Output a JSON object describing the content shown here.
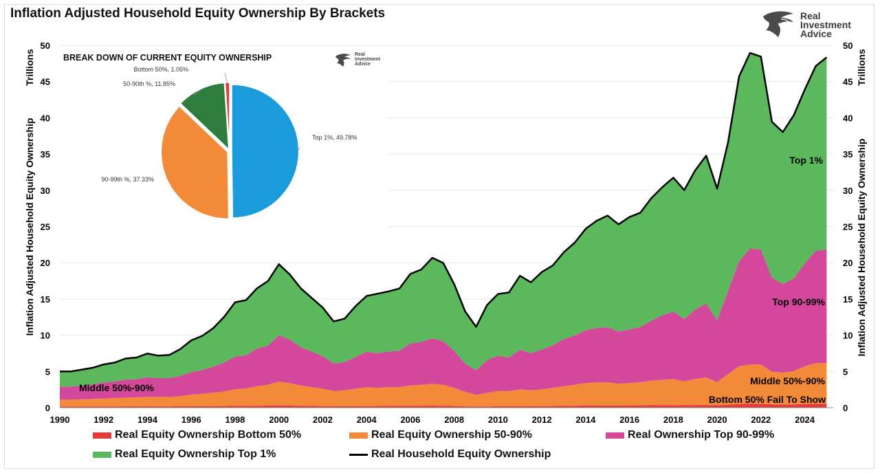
{
  "title": "Inflation Adjusted Household Equity Ownership By Brackets",
  "logo": {
    "line1": "Real",
    "line2": "Investment",
    "line3": "Advice"
  },
  "colors": {
    "bottom50": "#e53a3a",
    "p50_90": "#f28a3a",
    "p90_99": "#d3489b",
    "top1": "#5cb85c",
    "total": "#000000",
    "pie_top1": "#1a9bdc",
    "pie_90_99": "#f28a3a",
    "pie_50_90": "#2e7d3e",
    "pie_bottom50": "#e53a3a"
  },
  "chart_data": [
    {
      "type": "area",
      "title": "Inflation Adjusted Household Equity Ownership By Brackets",
      "ylabel_left": "Inflation Adjusted Household Equity Ownership",
      "ylabel_right_top": "Trillions",
      "ylabel_right": "Inflation Adjusted Household Equity Ownership",
      "ylabel_left_top": "Trillions",
      "xlim": [
        1990,
        2025.3
      ],
      "ylim": [
        0,
        50
      ],
      "xticks": [
        "1990",
        "1992",
        "1994",
        "1996",
        "1998",
        "2000",
        "2002",
        "2004",
        "2006",
        "2008",
        "2010",
        "2012",
        "2014",
        "2016",
        "2018",
        "2020",
        "2022",
        "2024"
      ],
      "yticks": [
        "0",
        "5",
        "10",
        "15",
        "20",
        "25",
        "30",
        "35",
        "40",
        "45",
        "50"
      ],
      "stacked": true,
      "x": [
        1990,
        1990.5,
        1991,
        1991.5,
        1992,
        1992.5,
        1993,
        1993.5,
        1994,
        1994.5,
        1995,
        1995.5,
        1996,
        1996.5,
        1997,
        1997.5,
        1998,
        1998.5,
        1999,
        1999.5,
        2000,
        2000.5,
        2001,
        2001.5,
        2002,
        2002.5,
        2003,
        2003.5,
        2004,
        2004.5,
        2005,
        2005.5,
        2006,
        2006.5,
        2007,
        2007.5,
        2008,
        2008.5,
        2009,
        2009.5,
        2010,
        2010.5,
        2011,
        2011.5,
        2012,
        2012.5,
        2013,
        2013.5,
        2014,
        2014.5,
        2015,
        2015.5,
        2016,
        2016.5,
        2017,
        2017.5,
        2018,
        2018.5,
        2019,
        2019.5,
        2020,
        2020.5,
        2021,
        2021.5,
        2022,
        2022.5,
        2023,
        2023.5,
        2024,
        2024.5,
        2025
      ],
      "series": [
        {
          "name": "Real Equity Ownership Bottom 50%",
          "color": "#e53a3a",
          "values": [
            0.15,
            0.15,
            0.16,
            0.16,
            0.17,
            0.17,
            0.18,
            0.18,
            0.18,
            0.18,
            0.18,
            0.19,
            0.2,
            0.21,
            0.22,
            0.23,
            0.25,
            0.25,
            0.27,
            0.28,
            0.3,
            0.28,
            0.26,
            0.24,
            0.22,
            0.2,
            0.2,
            0.21,
            0.22,
            0.23,
            0.24,
            0.25,
            0.26,
            0.27,
            0.28,
            0.27,
            0.23,
            0.18,
            0.16,
            0.17,
            0.19,
            0.2,
            0.21,
            0.21,
            0.22,
            0.23,
            0.25,
            0.27,
            0.29,
            0.3,
            0.31,
            0.3,
            0.31,
            0.32,
            0.33,
            0.34,
            0.35,
            0.33,
            0.36,
            0.37,
            0.33,
            0.42,
            0.5,
            0.56,
            0.55,
            0.45,
            0.44,
            0.46,
            0.5,
            0.54,
            0.55
          ]
        },
        {
          "name": "Real Equity Ownership 50-90%",
          "color": "#f28a3a",
          "values": [
            0.95,
            0.95,
            1.0,
            1.05,
            1.1,
            1.15,
            1.2,
            1.25,
            1.3,
            1.3,
            1.3,
            1.4,
            1.6,
            1.7,
            1.85,
            2.0,
            2.3,
            2.4,
            2.7,
            2.9,
            3.3,
            3.1,
            2.8,
            2.6,
            2.4,
            2.1,
            2.2,
            2.4,
            2.6,
            2.5,
            2.6,
            2.6,
            2.8,
            2.9,
            3.0,
            2.9,
            2.5,
            2.0,
            1.6,
            1.9,
            2.1,
            2.1,
            2.3,
            2.2,
            2.3,
            2.5,
            2.7,
            2.9,
            3.1,
            3.2,
            3.2,
            3.0,
            3.1,
            3.2,
            3.4,
            3.5,
            3.6,
            3.3,
            3.6,
            3.8,
            3.2,
            4.2,
            5.2,
            5.4,
            5.4,
            4.5,
            4.4,
            4.6,
            5.2,
            5.6,
            5.6
          ]
        },
        {
          "name": "Real Ownership Top 90-99%",
          "color": "#d3489b",
          "values": [
            1.8,
            1.8,
            1.9,
            2.0,
            2.2,
            2.3,
            2.5,
            2.5,
            2.7,
            2.6,
            2.6,
            2.8,
            3.1,
            3.3,
            3.6,
            4.0,
            4.5,
            4.6,
            5.2,
            5.4,
            6.4,
            6.0,
            5.3,
            4.9,
            4.5,
            3.8,
            3.9,
            4.4,
            4.9,
            4.8,
            4.9,
            5.0,
            5.8,
            5.9,
            6.3,
            6.0,
            5.1,
            3.9,
            3.4,
            4.5,
            4.9,
            4.6,
            5.5,
            5.1,
            5.5,
            5.9,
            6.5,
            6.8,
            7.3,
            7.5,
            7.6,
            7.2,
            7.4,
            7.6,
            8.3,
            8.9,
            9.3,
            8.6,
            9.6,
            10.2,
            8.5,
            11.5,
            14.5,
            16.0,
            15.9,
            13.0,
            12.2,
            12.8,
            14.2,
            15.5,
            15.7
          ]
        },
        {
          "name": "Real Equity Ownership Top 1%",
          "color": "#5cb85c",
          "values": [
            2.1,
            2.1,
            2.2,
            2.3,
            2.5,
            2.6,
            2.9,
            3.0,
            3.3,
            3.1,
            3.2,
            3.7,
            4.4,
            4.7,
            5.3,
            6.3,
            7.5,
            7.6,
            8.3,
            8.9,
            9.8,
            9.0,
            8.1,
            7.4,
            6.7,
            5.8,
            6.0,
            7.0,
            7.7,
            8.2,
            8.3,
            8.6,
            9.6,
            10.0,
            11.1,
            10.8,
            9.2,
            7.2,
            6.0,
            7.6,
            8.5,
            9.0,
            10.2,
            9.8,
            10.7,
            11.0,
            12.0,
            12.8,
            14.0,
            14.8,
            15.4,
            14.8,
            15.5,
            15.8,
            16.9,
            17.7,
            18.5,
            17.8,
            19.2,
            20.4,
            18.2,
            20.5,
            25.5,
            27.0,
            26.6,
            21.5,
            21.0,
            22.5,
            24.0,
            25.5,
            26.5
          ]
        },
        {
          "name": "Real Household Equity Ownership",
          "color": "#000000",
          "kind": "line",
          "values": [
            5.0,
            5.0,
            5.26,
            5.51,
            5.97,
            6.22,
            6.78,
            6.93,
            7.48,
            7.18,
            7.28,
            8.09,
            9.3,
            9.91,
            10.97,
            12.53,
            14.55,
            14.85,
            16.47,
            17.48,
            19.8,
            18.38,
            16.46,
            15.14,
            13.82,
            11.9,
            12.3,
            14.01,
            15.42,
            15.73,
            16.04,
            16.45,
            18.46,
            19.07,
            20.68,
            19.97,
            17.03,
            13.28,
            11.16,
            14.17,
            15.69,
            15.9,
            18.21,
            17.31,
            18.72,
            19.63,
            21.45,
            22.77,
            24.69,
            25.8,
            26.51,
            25.3,
            26.31,
            26.92,
            28.93,
            30.44,
            31.75,
            30.03,
            32.76,
            34.77,
            30.23,
            36.62,
            45.7,
            48.96,
            48.45,
            39.45,
            38.04,
            40.36,
            43.9,
            47.14,
            48.35
          ]
        }
      ],
      "annotations": [
        "Middle 50%-90%",
        "Top 1%",
        "Top 90-99%",
        "Middle 50%-90%",
        "Bottom 50% Fail To Show"
      ]
    },
    {
      "type": "pie",
      "title": "BREAK DOWN OF CURRENT EQUITY OWNERSHIP",
      "slices": [
        {
          "label": "Top 1%, 49.78%",
          "value": 49.78,
          "color": "#1a9bdc"
        },
        {
          "label": "90-99th %, 37.33%",
          "value": 37.33,
          "color": "#f28a3a"
        },
        {
          "label": "50-90th %, 11.85%",
          "value": 11.85,
          "color": "#2e7d3e"
        },
        {
          "label": "Bottom 50%, 1.05%",
          "value": 1.05,
          "color": "#e53a3a"
        }
      ]
    }
  ],
  "legend": [
    {
      "label": "Real Equity Ownership Bottom 50%",
      "color": "#e53a3a",
      "kind": "area"
    },
    {
      "label": "Real Equity Ownership 50-90%",
      "color": "#f28a3a",
      "kind": "area"
    },
    {
      "label": "Real Ownership Top 90-99%",
      "color": "#d3489b",
      "kind": "area"
    },
    {
      "label": "Real Equity Ownership Top 1%",
      "color": "#5cb85c",
      "kind": "area"
    },
    {
      "label": "Real Household Equity Ownership",
      "color": "#000000",
      "kind": "line"
    }
  ]
}
